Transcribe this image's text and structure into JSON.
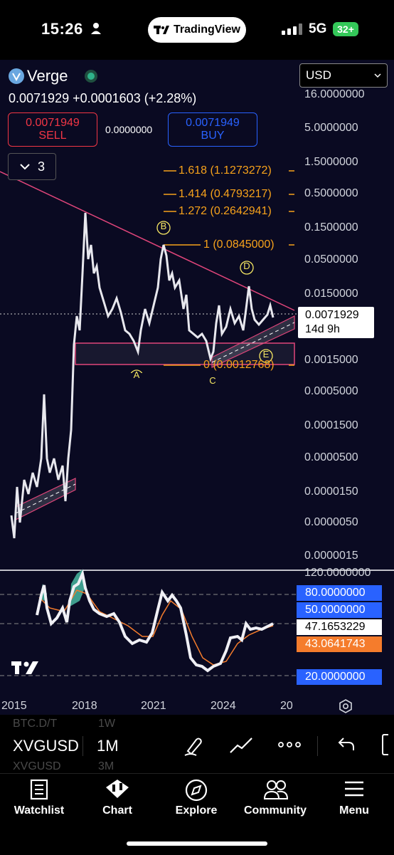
{
  "status_bar": {
    "time": "15:26",
    "app_pill": "TradingView",
    "network": "5G",
    "battery": "32+"
  },
  "symbol": {
    "name": "Verge",
    "price": "0.0071929",
    "change": "+0.0001603",
    "change_pct": "(+2.28%)",
    "sell_price": "0.0071949",
    "sell_label": "SELL",
    "buy_price": "0.0071949",
    "buy_label": "BUY",
    "spread": "0.0000000",
    "indicator_count": "3",
    "currency": "USD"
  },
  "price_axis": {
    "ticks": [
      "16.0000000",
      "5.0000000",
      "1.5000000",
      "0.5000000",
      "0.1500000",
      "0.0500000",
      "0.0150000",
      "0.0015000",
      "0.0005000",
      "0.0001500",
      "0.0000500",
      "0.0000150",
      "0.0000050",
      "0.0000015"
    ],
    "current_price": "0.0071929",
    "countdown": "14d 9h"
  },
  "fib_levels": [
    {
      "label": "1.618 (1.1273272)"
    },
    {
      "label": "1.414 (0.4793217)"
    },
    {
      "label": "1.272 (0.2642941)"
    },
    {
      "label": "1 (0.0845000)"
    },
    {
      "label": "0 (0.0012768)"
    }
  ],
  "wave_labels": [
    "A",
    "B",
    "C",
    "D",
    "E"
  ],
  "oscillator": {
    "top_tick": "120.0000000",
    "levels": [
      "80.0000000",
      "50.0000000",
      "47.1653229",
      "43.0641743",
      "20.0000000"
    ],
    "colors": [
      "#2962ff",
      "#2962ff",
      "#ffffff",
      "#f57c2c",
      "#2962ff"
    ]
  },
  "time_axis": {
    "ticks": [
      "2015",
      "2018",
      "2021",
      "2024",
      "20"
    ]
  },
  "toolbar": {
    "ticker": "XVGUSD",
    "interval": "1M",
    "ghost_rows": [
      "BTC.D/T",
      "1W",
      "XVGUSD",
      "3M"
    ]
  },
  "tabs": [
    {
      "label": "Watchlist",
      "icon": "watchlist-icon"
    },
    {
      "label": "Chart",
      "icon": "chart-icon"
    },
    {
      "label": "Explore",
      "icon": "compass-icon"
    },
    {
      "label": "Community",
      "icon": "community-icon"
    },
    {
      "label": "Menu",
      "icon": "menu-icon"
    }
  ],
  "colors": {
    "sell": "#f23645",
    "buy": "#2962ff",
    "fib": "#f7a21b",
    "trend": "#e0457a",
    "wave": "#f5e663"
  }
}
